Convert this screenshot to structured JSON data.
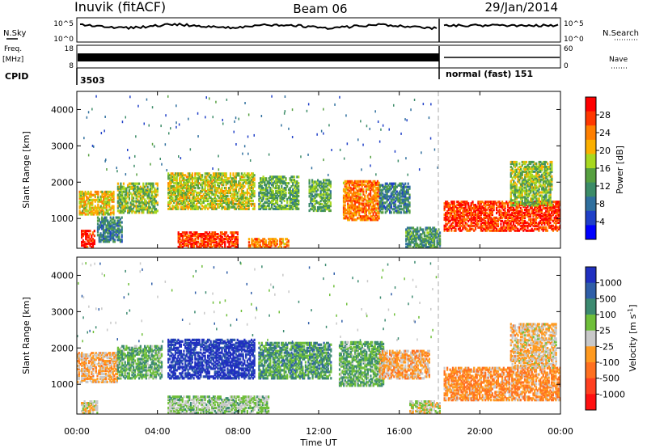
{
  "header": {
    "station": "Inuvik (fitACF)",
    "beam": "Beam 06",
    "date": "29/Jan/2014"
  },
  "status_panels": {
    "nsky_label": "N.Sky",
    "nsky_top": "10^5",
    "nsky_bottom": "10^0",
    "nsearch_label": "N.Search",
    "nsearch_top": "10^5",
    "nsearch_bottom": "10^0",
    "freq_label_1": "Freq.",
    "freq_label_2": "[MHz]",
    "freq_top": "18",
    "freq_bottom": "8",
    "nave_label": "Nave",
    "nave_top": "60",
    "nave_bottom": "0",
    "cpid_label": "CPID",
    "cpid_first": "3503",
    "cpid_second": "normal (fast) 151"
  },
  "colorbars": {
    "power": {
      "label": "Power [dB]",
      "ticks": [
        "28",
        "24",
        "20",
        "16",
        "12",
        "8",
        "4"
      ],
      "colors": [
        "#ff0000",
        "#ff3800",
        "#ff7f00",
        "#fbb000",
        "#a8d820",
        "#56a040",
        "#3c8c68",
        "#2f6f9e",
        "#2040c8",
        "#0000ff"
      ]
    },
    "velocity": {
      "label": "Velocity [m s",
      "label_sup": "-1",
      "label_end": "]",
      "ticks": [
        "1000",
        "500",
        "100",
        "25",
        "-25",
        "-100",
        "-500",
        "-1000"
      ],
      "colors": [
        "#2030c0",
        "#2f5ea8",
        "#3c8a70",
        "#6fbf3a",
        "#c8c8c8",
        "#ff9a20",
        "#ff7020",
        "#ff4020",
        "#ff1010"
      ]
    }
  },
  "chart_data": {
    "type": "heatmap",
    "title": "Inuvik (fitACF)  Beam 06  29/Jan/2014",
    "xlabel": "Time UT",
    "ylabel": "Slant Range [km]",
    "x_ticks": [
      "00:00",
      "04:00",
      "08:00",
      "12:00",
      "16:00",
      "20:00",
      "00:00"
    ],
    "x_range_hours": [
      0,
      24
    ],
    "y_ticks": [
      1000,
      2000,
      3000,
      4000
    ],
    "y_range_km": [
      180,
      4500
    ],
    "panels": [
      {
        "quantity": "Power",
        "unit": "dB",
        "color_range": [
          0,
          32
        ],
        "regions": [
          {
            "t0": 0.1,
            "t1": 1.8,
            "r0": 1150,
            "r1": 1800,
            "value": 20
          },
          {
            "t0": 0.2,
            "t1": 0.9,
            "r0": 250,
            "r1": 700,
            "value": 30
          },
          {
            "t0": 1.0,
            "t1": 2.2,
            "r0": 400,
            "r1": 1100,
            "value": 10
          },
          {
            "t0": 2.0,
            "t1": 4.0,
            "r0": 1200,
            "r1": 2000,
            "value": 16
          },
          {
            "t0": 4.5,
            "t1": 8.8,
            "r0": 1300,
            "r1": 2300,
            "value": 18
          },
          {
            "t0": 5.0,
            "t1": 8.0,
            "r0": 250,
            "r1": 650,
            "value": 28
          },
          {
            "t0": 9.0,
            "t1": 11.0,
            "r0": 1300,
            "r1": 2200,
            "value": 14
          },
          {
            "t0": 8.5,
            "t1": 10.5,
            "r0": 200,
            "r1": 500,
            "value": 24
          },
          {
            "t0": 11.5,
            "t1": 12.6,
            "r0": 1250,
            "r1": 2100,
            "value": 14
          },
          {
            "t0": 13.2,
            "t1": 15.0,
            "r0": 1000,
            "r1": 2100,
            "value": 24
          },
          {
            "t0": 15.0,
            "t1": 16.5,
            "r0": 1200,
            "r1": 2000,
            "value": 10
          },
          {
            "t0": 16.3,
            "t1": 18.0,
            "r0": 200,
            "r1": 800,
            "value": 12
          },
          {
            "t0": 18.2,
            "t1": 24.0,
            "r0": 700,
            "r1": 1500,
            "value": 28
          },
          {
            "t0": 21.5,
            "t1": 23.6,
            "r0": 1400,
            "r1": 2600,
            "value": 16
          }
        ]
      },
      {
        "quantity": "Velocity",
        "unit": "m s^-1",
        "color_range": [
          -1000,
          1000
        ],
        "regions": [
          {
            "t0": 0.0,
            "t1": 2.0,
            "r0": 1100,
            "r1": 1900,
            "value": -150
          },
          {
            "t0": 0.2,
            "t1": 1.0,
            "r0": 250,
            "r1": 600,
            "value": 0
          },
          {
            "t0": 2.0,
            "t1": 4.2,
            "r0": 1200,
            "r1": 2100,
            "value": 300
          },
          {
            "t0": 4.5,
            "t1": 8.8,
            "r0": 1200,
            "r1": 2300,
            "value": 900
          },
          {
            "t0": 4.5,
            "t1": 9.5,
            "r0": 250,
            "r1": 700,
            "value": 150
          },
          {
            "t0": 9.0,
            "t1": 12.6,
            "r0": 1200,
            "r1": 2200,
            "value": 400
          },
          {
            "t0": 13.0,
            "t1": 15.2,
            "r0": 1000,
            "r1": 2200,
            "value": 300
          },
          {
            "t0": 15.0,
            "t1": 17.5,
            "r0": 1200,
            "r1": 1950,
            "value": -200
          },
          {
            "t0": 16.5,
            "t1": 18.0,
            "r0": 250,
            "r1": 600,
            "value": 20
          },
          {
            "t0": 18.2,
            "t1": 24.0,
            "r0": 600,
            "r1": 1500,
            "value": -300
          },
          {
            "t0": 21.5,
            "t1": 23.8,
            "r0": 1500,
            "r1": 2700,
            "value": -100
          }
        ]
      }
    ]
  }
}
